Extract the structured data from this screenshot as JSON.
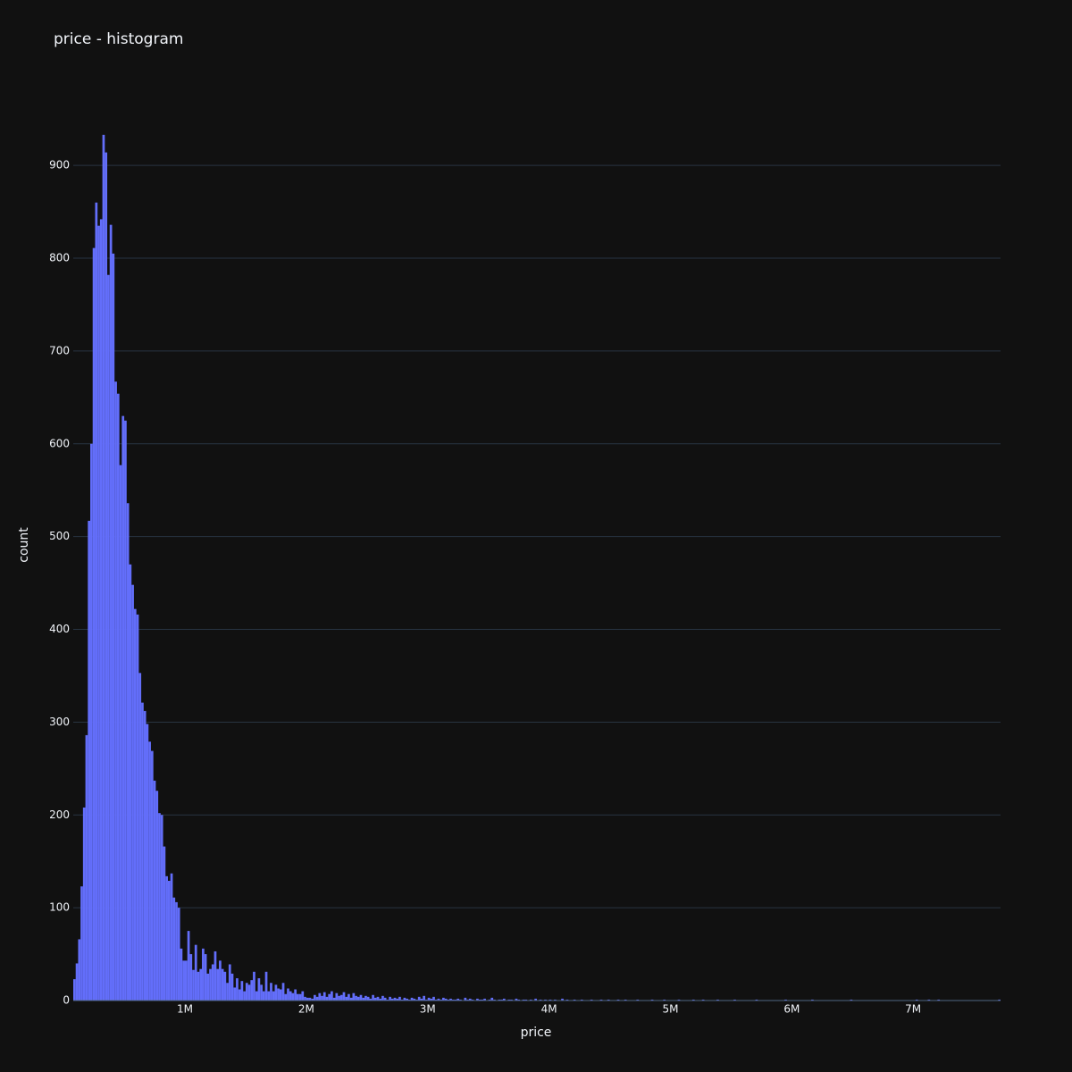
{
  "chart_data": {
    "type": "histogram",
    "title": "price - histogram",
    "x_label": "price",
    "y_label": "count",
    "color": "#636efa",
    "grid": true,
    "bins": [
      80000,
      100000,
      120000,
      140000,
      160000,
      180000,
      200000,
      220000,
      240000,
      260000,
      280000,
      300000,
      320000,
      340000,
      360000,
      380000,
      400000,
      420000,
      440000,
      460000,
      480000,
      500000,
      520000,
      540000,
      560000,
      580000,
      600000,
      620000,
      640000,
      660000,
      680000,
      700000,
      720000,
      740000,
      760000,
      780000,
      800000,
      820000,
      840000,
      860000,
      880000,
      900000,
      920000,
      940000,
      960000,
      980000,
      1000000,
      1020000,
      1040000,
      1060000,
      1080000,
      1100000,
      1120000,
      1140000,
      1160000,
      1180000,
      1200000,
      1220000,
      1240000,
      1260000,
      1280000,
      1300000,
      1320000,
      1340000,
      1360000,
      1380000,
      1400000,
      1420000,
      1440000,
      1460000,
      1480000,
      1500000,
      1520000,
      1540000,
      1560000,
      1580000,
      1600000,
      1620000,
      1640000,
      1660000,
      1680000,
      1700000,
      1720000,
      1740000,
      1760000,
      1780000,
      1800000,
      1820000,
      1840000,
      1860000,
      1880000,
      1900000,
      1920000,
      1940000,
      1960000,
      1980000,
      2000000,
      2020000,
      2040000,
      2060000,
      2080000,
      2100000,
      2120000,
      2140000,
      2160000,
      2180000,
      2200000,
      2220000,
      2240000,
      2260000,
      2280000,
      2300000,
      2320000,
      2340000,
      2360000,
      2380000,
      2400000,
      2420000,
      2440000,
      2460000,
      2480000,
      2500000,
      2520000,
      2540000,
      2560000,
      2580000,
      2600000,
      2620000,
      2640000,
      2660000,
      2680000,
      2700000,
      2720000,
      2740000,
      2760000,
      2780000,
      2800000,
      2820000,
      2840000,
      2860000,
      2880000,
      2900000,
      2920000,
      2940000,
      2960000,
      2980000,
      3000000,
      3020000,
      3040000,
      3060000,
      3080000,
      3100000,
      3120000,
      3140000,
      3160000,
      3180000,
      3200000,
      3220000,
      3240000,
      3260000,
      3280000,
      3300000,
      3320000,
      3340000,
      3360000,
      3380000,
      3400000,
      3420000,
      3440000,
      3460000,
      3480000,
      3500000,
      3520000,
      3540000,
      3560000,
      3580000,
      3600000,
      3620000,
      3640000,
      3660000,
      3680000,
      3700000,
      3720000,
      3740000,
      3760000,
      3780000,
      3800000,
      3820000,
      3840000,
      3860000,
      3880000,
      3900000,
      3920000,
      3940000,
      3960000,
      3980000,
      4000000,
      4020000,
      4040000,
      4060000,
      4080000,
      4100000,
      4120000,
      4140000,
      4160000,
      4180000,
      4200000,
      4220000,
      4240000,
      4260000,
      4280000,
      4300000,
      4320000,
      4340000,
      4360000,
      4380000,
      4400000,
      4420000,
      4440000,
      4460000,
      4480000,
      4500000,
      4520000,
      4540000,
      4560000,
      4580000,
      4600000,
      4620000,
      4640000,
      4660000,
      4680000,
      4700000,
      4720000,
      4740000,
      4760000,
      4780000,
      4800000,
      4820000,
      4840000,
      4860000,
      4880000,
      4900000,
      4920000,
      4940000,
      4960000,
      4980000,
      5000000,
      5020000,
      5040000,
      5060000,
      5080000,
      5100000,
      5120000,
      5140000,
      5160000,
      5180000,
      5200000,
      5220000,
      5240000,
      5260000,
      5280000,
      5300000,
      5320000,
      5340000,
      5360000,
      5380000,
      5400000,
      5420000,
      5440000,
      5460000,
      5480000,
      5500000,
      5520000,
      5540000,
      5560000,
      5580000,
      5600000,
      5620000,
      5640000,
      5660000,
      5680000,
      5700000,
      5720000,
      5740000,
      5760000,
      5780000,
      5800000,
      5820000,
      5840000,
      5860000,
      5880000,
      5900000,
      5920000,
      5940000,
      5960000,
      5980000,
      6000000,
      6020000,
      6040000,
      6060000,
      6080000,
      6100000,
      6120000,
      6140000,
      6160000,
      6180000,
      6200000,
      6220000,
      6240000,
      6260000,
      6280000,
      6300000,
      6320000,
      6340000,
      6360000,
      6380000,
      6400000,
      6420000,
      6440000,
      6460000,
      6480000,
      6500000,
      6520000,
      6540000,
      6560000,
      6580000,
      6600000,
      6620000,
      6640000,
      6660000,
      6680000,
      6700000,
      6720000,
      6740000,
      6760000,
      6780000,
      6800000,
      6820000,
      6840000,
      6860000,
      6880000,
      6900000,
      6920000,
      6940000,
      6960000,
      6980000,
      7000000,
      7020000,
      7040000,
      7060000,
      7080000,
      7100000,
      7120000,
      7140000,
      7160000,
      7180000,
      7200000,
      7220000,
      7240000,
      7260000,
      7280000,
      7300000,
      7320000,
      7340000,
      7360000,
      7380000,
      7400000,
      7420000,
      7440000,
      7460000,
      7480000,
      7500000,
      7520000,
      7540000,
      7560000,
      7580000,
      7600000,
      7620000,
      7640000,
      7660000,
      7680000,
      7700000,
      7720000
    ],
    "counts": [
      23,
      40,
      66,
      123,
      208,
      286,
      517,
      600,
      811,
      860,
      835,
      842,
      933,
      914,
      782,
      836,
      805,
      667,
      654,
      577,
      630,
      625,
      536,
      470,
      448,
      422,
      416,
      353,
      321,
      312,
      298,
      279,
      269,
      237,
      226,
      202,
      200,
      166,
      134,
      129,
      137,
      111,
      106,
      100,
      56,
      43,
      43,
      75,
      50,
      33,
      60,
      31,
      34,
      56,
      50,
      29,
      34,
      39,
      53,
      34,
      43,
      34,
      31,
      19,
      39,
      29,
      14,
      24,
      12,
      21,
      10,
      19,
      17,
      22,
      31,
      10,
      24,
      17,
      10,
      31,
      10,
      19,
      10,
      17,
      13,
      12,
      19,
      7,
      13,
      10,
      8,
      12,
      7,
      7,
      10,
      4,
      3,
      3,
      2,
      6,
      4,
      8,
      5,
      9,
      4,
      7,
      10,
      3,
      8,
      5,
      6,
      9,
      4,
      7,
      3,
      8,
      5,
      4,
      6,
      3,
      5,
      4,
      2,
      6,
      3,
      4,
      2,
      5,
      3,
      1,
      4,
      2,
      3,
      2,
      4,
      1,
      3,
      2,
      1,
      3,
      2,
      1,
      4,
      2,
      5,
      1,
      3,
      2,
      4,
      1,
      2,
      1,
      3,
      2,
      1,
      2,
      1,
      1,
      2,
      1,
      0,
      3,
      1,
      2,
      1,
      0,
      2,
      1,
      1,
      2,
      0,
      1,
      3,
      1,
      0,
      1,
      1,
      2,
      0,
      1,
      1,
      0,
      2,
      1,
      0,
      1,
      1,
      0,
      1,
      0,
      2,
      0,
      1,
      0,
      1,
      0,
      1,
      0,
      1,
      0,
      0,
      2,
      0,
      1,
      0,
      0,
      1,
      0,
      0,
      1,
      0,
      0,
      0,
      1,
      0,
      0,
      0,
      1,
      0,
      0,
      1,
      0,
      0,
      0,
      1,
      0,
      0,
      1,
      0,
      0,
      0,
      0,
      1,
      0,
      0,
      0,
      0,
      0,
      1,
      0,
      0,
      0,
      0,
      1,
      0,
      0,
      0,
      0,
      0,
      1,
      0,
      0,
      0,
      0,
      0,
      1,
      0,
      0,
      0,
      1,
      0,
      0,
      0,
      0,
      0,
      1,
      0,
      0,
      0,
      0,
      0,
      0,
      1,
      0,
      0,
      0,
      0,
      0,
      0,
      0,
      0,
      1,
      0,
      0,
      0,
      0,
      0,
      0,
      0,
      0,
      0,
      0,
      0,
      1,
      0,
      0,
      0,
      0,
      0,
      0,
      0,
      0,
      0,
      0,
      1,
      0,
      0,
      0,
      0,
      0,
      0,
      0,
      0,
      0,
      0,
      0,
      0,
      0,
      0,
      0,
      1,
      0,
      0,
      0,
      0,
      0,
      0,
      0,
      0,
      0,
      0,
      0,
      0,
      0,
      0,
      0,
      0,
      0,
      0,
      0,
      0,
      0,
      0,
      0,
      0,
      0,
      0,
      1,
      0,
      0,
      0,
      0,
      1,
      0,
      0,
      0,
      1,
      0,
      0,
      0,
      0,
      0,
      0,
      0,
      0,
      0,
      0,
      0,
      0,
      0,
      0,
      0,
      0,
      0,
      0,
      0,
      0,
      0,
      0,
      0,
      0,
      1
    ],
    "xlim": [
      80000,
      7720000
    ],
    "xticks": [
      {
        "value": 1000000,
        "label": "1M"
      },
      {
        "value": 2000000,
        "label": "2M"
      },
      {
        "value": 3000000,
        "label": "3M"
      },
      {
        "value": 4000000,
        "label": "4M"
      },
      {
        "value": 5000000,
        "label": "5M"
      },
      {
        "value": 6000000,
        "label": "6M"
      },
      {
        "value": 7000000,
        "label": "7M"
      }
    ],
    "ylim": [
      0,
      982
    ],
    "yticks": [
      0,
      100,
      200,
      300,
      400,
      500,
      600,
      700,
      800,
      900
    ]
  }
}
